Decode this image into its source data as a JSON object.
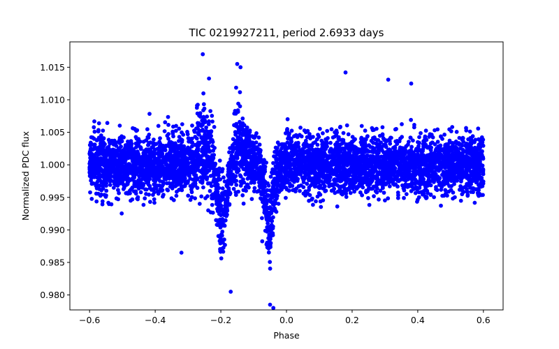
{
  "chart_data": {
    "type": "scatter",
    "title": "TIC 0219927211, period 2.6933 days",
    "xlabel": "Phase",
    "ylabel": "Normalized PDC flux",
    "xlim": [
      -0.66,
      0.66
    ],
    "ylim": [
      0.9777,
      1.0189
    ],
    "xticks": [
      -0.6,
      -0.4,
      -0.2,
      0.0,
      0.2,
      0.4,
      0.6
    ],
    "xtick_labels": [
      "−0.6",
      "−0.4",
      "−0.2",
      "0.0",
      "0.2",
      "0.4",
      "0.6"
    ],
    "yticks": [
      0.98,
      0.985,
      0.99,
      0.995,
      1.0,
      1.005,
      1.01,
      1.015
    ],
    "ytick_labels": [
      "0.980",
      "0.985",
      "0.990",
      "0.995",
      "1.000",
      "1.005",
      "1.010",
      "1.015"
    ],
    "grid": false,
    "series": [
      {
        "name": "PDC flux",
        "color": "#0000ff",
        "x_range": [
          -0.6,
          0.6
        ],
        "baseline": 1.0,
        "scatter_sigma": 0.0022,
        "primary_eclipse": {
          "center": -0.195,
          "width": 0.014,
          "depth": 0.0125
        },
        "secondary_eclipse": {
          "center": -0.052,
          "width": 0.012,
          "depth": 0.0135
        },
        "brightening": [
          {
            "center": -0.255,
            "width": 0.02,
            "amplitude": 0.005
          },
          {
            "center": -0.145,
            "width": 0.02,
            "amplitude": 0.006
          }
        ],
        "outliers": [
          {
            "x": -0.255,
            "y": 1.017
          },
          {
            "x": -0.15,
            "y": 1.0155
          },
          {
            "x": -0.14,
            "y": 1.015
          },
          {
            "x": 0.18,
            "y": 1.0142
          },
          {
            "x": 0.31,
            "y": 1.0131
          },
          {
            "x": 0.38,
            "y": 1.0125
          },
          {
            "x": -0.32,
            "y": 0.9865
          },
          {
            "x": -0.17,
            "y": 0.9805
          },
          {
            "x": -0.04,
            "y": 0.978
          },
          {
            "x": -0.05,
            "y": 0.9785
          }
        ]
      }
    ]
  }
}
